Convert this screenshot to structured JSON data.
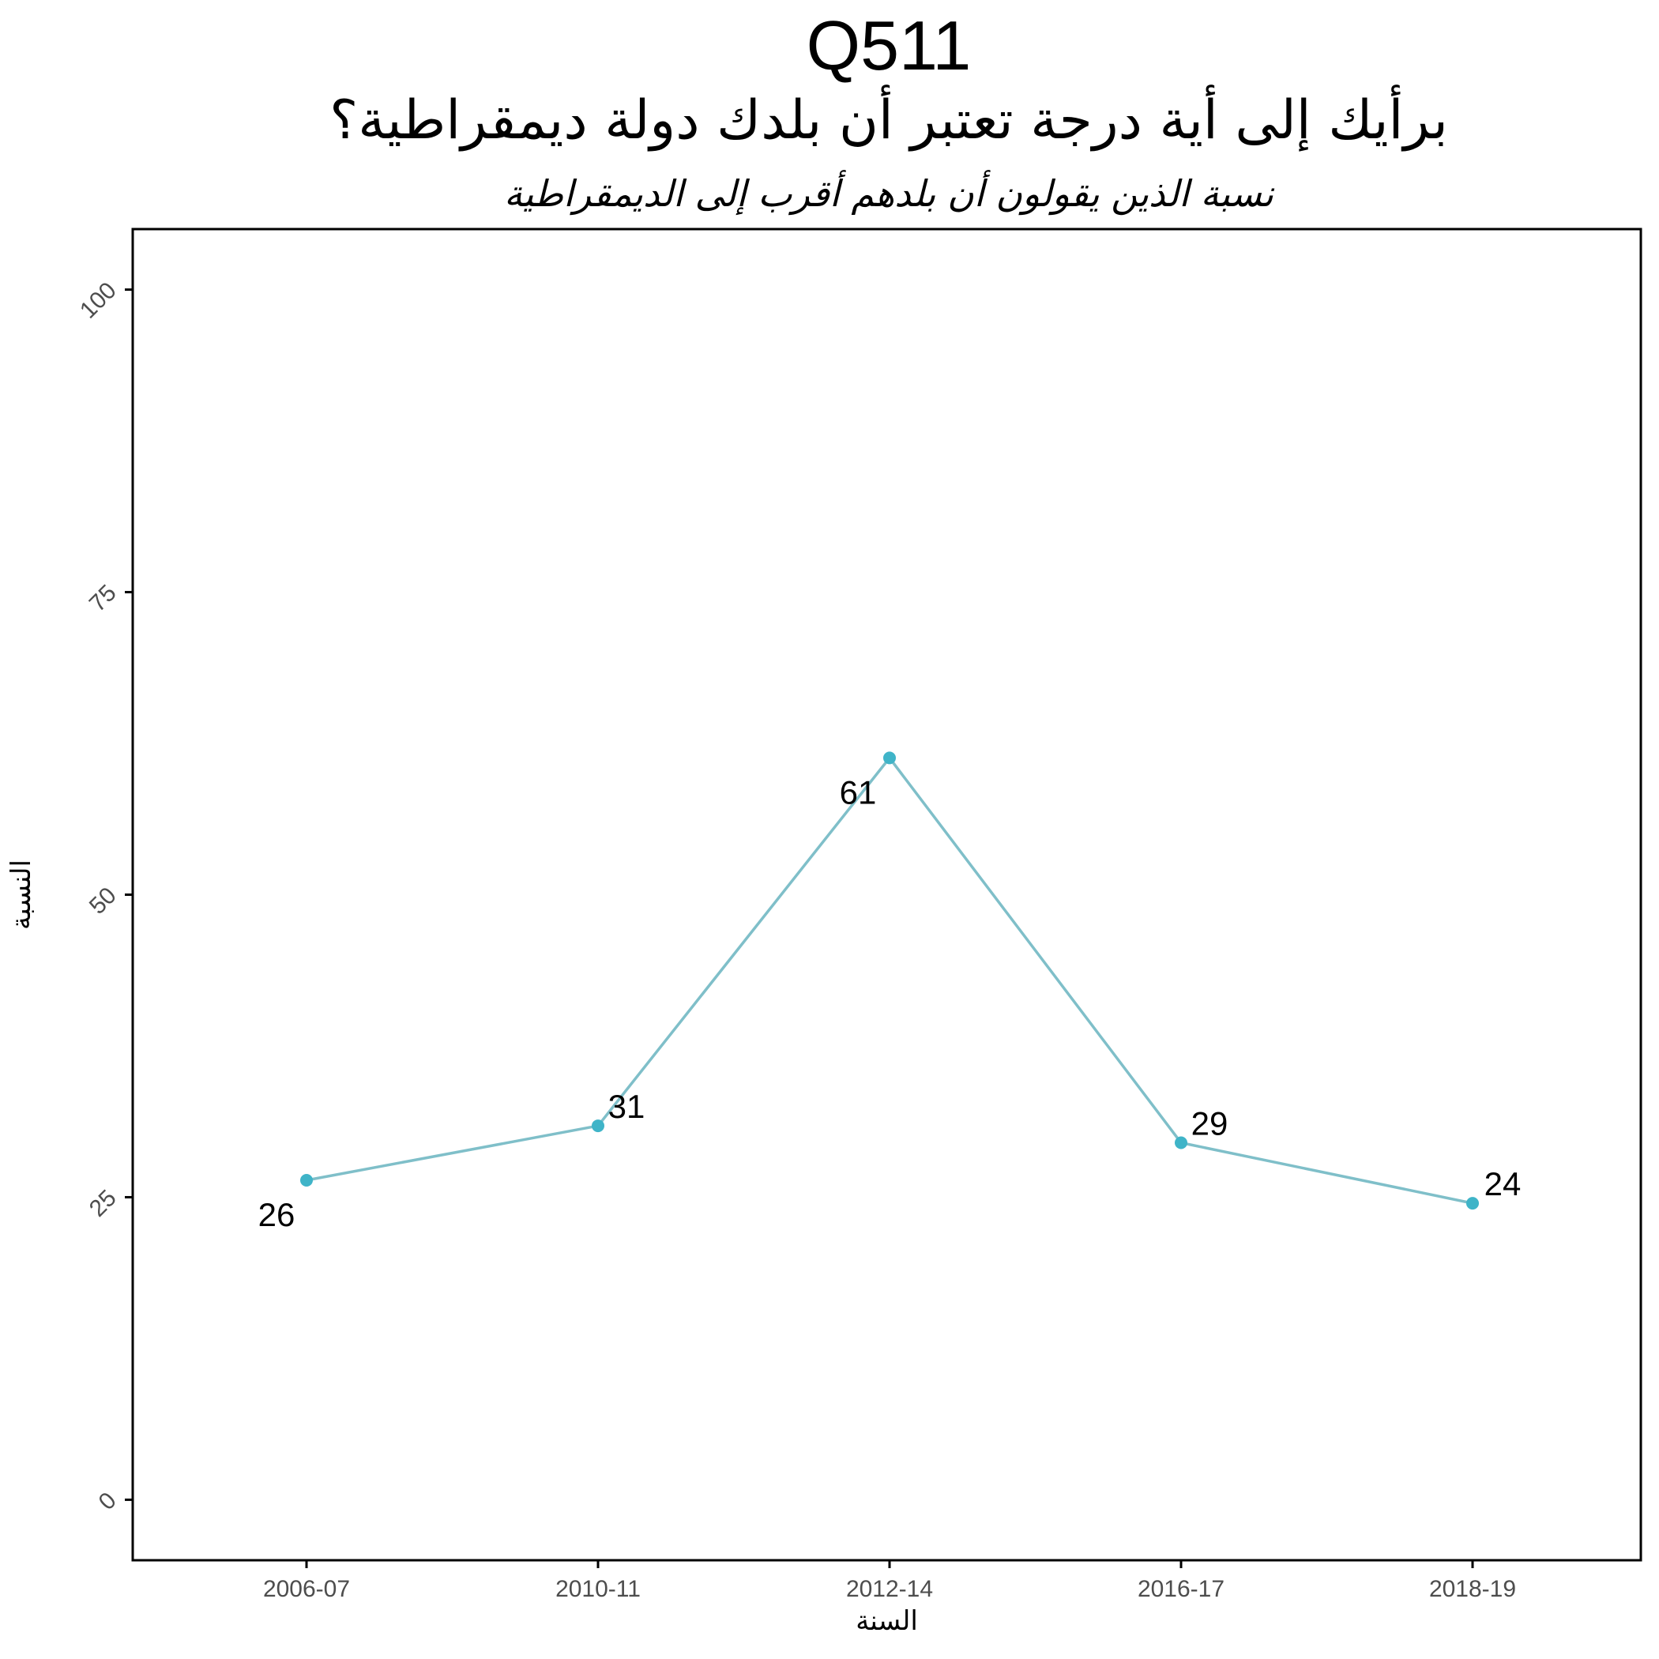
{
  "header": {
    "code": "Q511",
    "question": "برأيك إلى أية درجة تعتبر أن بلدك دولة ديمقراطية؟",
    "subtitle": "نسبة الذين يقولون أن بلدهم أقرب إلى الديمقراطية"
  },
  "colors": {
    "line": "#7fbfc9",
    "point": "#3fb4c8",
    "axis": "#000000",
    "tick_text": "#4d4d4d",
    "label_text": "#000000"
  },
  "chart_data": {
    "type": "line",
    "title": "Q511",
    "subtitle": "برأيك إلى أية درجة تعتبر أن بلدك دولة ديمقراطية؟",
    "caption": "نسبة الذين يقولون أن بلدهم أقرب إلى الديمقراطية",
    "xlabel": "السنة",
    "ylabel": "النسبة",
    "categories": [
      "2006-07",
      "2010-11",
      "2012-14",
      "2016-17",
      "2018-19"
    ],
    "values": [
      26.4,
      30.9,
      61.3,
      29.5,
      24.5
    ],
    "data_labels": [
      "26",
      "31",
      "61",
      "29",
      "24"
    ],
    "ylim": [
      -5,
      105
    ],
    "yticks": [
      0,
      25,
      50,
      75,
      100
    ],
    "ytick_labels": [
      "0",
      "25",
      "50",
      "75",
      "100"
    ],
    "grid": false,
    "legend": "none"
  }
}
